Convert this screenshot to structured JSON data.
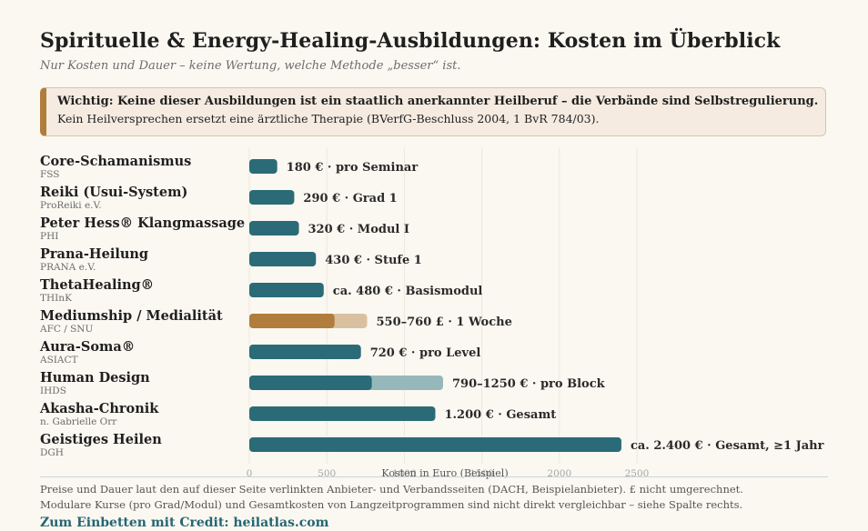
{
  "header": {
    "title": "Spirituelle & Energy-Healing-Ausbildungen: Kosten im Überblick",
    "subtitle": "Nur Kosten und Dauer – keine Wertung, welche Methode „besser“ ist."
  },
  "warning": {
    "strong": "Wichtig: Keine dieser Ausbildungen ist ein staatlich anerkannter Heilberuf – die Verbände sind Selbstregulierung.",
    "text": "Kein Heilversprechen ersetzt eine ärztliche Therapie (BVerfG-Beschluss 2004, 1 BvR 784/03)."
  },
  "colors": {
    "teal": "#2a6b77",
    "teal_light": "#96b8bb",
    "amber": "#b07d3c",
    "amber_light": "#d9c1a0",
    "accent": "#b07d3c"
  },
  "chart_data": {
    "type": "bar",
    "orientation": "horizontal",
    "xlabel": "Kosten in Euro (Beispiel)",
    "xlim": [
      0,
      2500
    ],
    "xticks": [
      0,
      500,
      1000,
      1500,
      2000,
      2500
    ],
    "xtick_labels": [
      "0",
      "500",
      "1000",
      "1500",
      "2000",
      "2500"
    ],
    "grid": true,
    "rows": [
      {
        "name": "Core-Schamanismus",
        "org": "FSS",
        "min": 180,
        "max": 180,
        "label": "180 € · pro Seminar",
        "color": "teal"
      },
      {
        "name": "Reiki (Usui-System)",
        "org": "ProReiki e.V.",
        "min": 290,
        "max": 290,
        "label": "290 € · Grad 1",
        "color": "teal"
      },
      {
        "name": "Peter Hess® Klangmassage",
        "org": "PHI",
        "min": 320,
        "max": 320,
        "label": "320 € · Modul I",
        "color": "teal"
      },
      {
        "name": "Prana-Heilung",
        "org": "PRANA e.V.",
        "min": 430,
        "max": 430,
        "label": "430 € · Stufe 1",
        "color": "teal"
      },
      {
        "name": "ThetaHealing®",
        "org": "THInK",
        "min": 480,
        "max": 480,
        "label": "ca. 480 € · Basismodul",
        "color": "teal"
      },
      {
        "name": "Mediumship / Medialität",
        "org": "AFC / SNU",
        "min": 550,
        "max": 760,
        "label": "550–760 £ · 1 Woche",
        "color": "amber"
      },
      {
        "name": "Aura-Soma®",
        "org": "ASIACT",
        "min": 720,
        "max": 720,
        "label": "720 € · pro Level",
        "color": "teal"
      },
      {
        "name": "Human Design",
        "org": "IHDS",
        "min": 790,
        "max": 1250,
        "label": "790–1250 € · pro Block",
        "color": "teal"
      },
      {
        "name": "Akasha-Chronik",
        "org": "n. Gabrielle Orr",
        "min": 1200,
        "max": 1200,
        "label": "1.200 € · Gesamt",
        "color": "teal"
      },
      {
        "name": "Geistiges Heilen",
        "org": "DGH",
        "min": 2400,
        "max": 2400,
        "label": "ca. 2.400 € · Gesamt, ≥1 Jahr",
        "color": "teal"
      }
    ]
  },
  "footer": {
    "note1": "Preise und Dauer laut den auf dieser Seite verlinkten Anbieter- und Verbandsseiten (DACH, Beispielanbieter). £ nicht umgerechnet.",
    "note2": "Modulare Kurse (pro Grad/Modul) und Gesamtkosten von Langzeitprogrammen sind nicht direkt vergleichbar – siehe Spalte rechts.",
    "credit": "Zum Einbetten mit Credit: heilatlas.com"
  }
}
